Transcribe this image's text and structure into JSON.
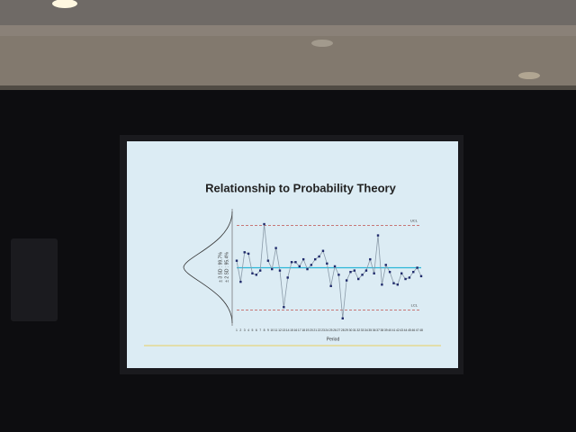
{
  "chart_data": {
    "type": "line",
    "title": "Relationship to Probability Theory",
    "x_label": "Period",
    "categories": [
      1,
      2,
      3,
      4,
      5,
      6,
      7,
      8,
      9,
      10,
      11,
      12,
      13,
      14,
      15,
      16,
      17,
      18,
      19,
      20,
      21,
      22,
      23,
      24,
      25,
      26,
      27,
      28,
      29,
      30,
      31,
      32,
      33,
      34,
      35,
      36,
      37,
      38,
      39,
      40,
      41,
      42,
      43,
      44,
      45,
      46,
      47,
      48
    ],
    "values": [
      0.5,
      -1,
      1.1,
      1.0,
      -0.4,
      -0.5,
      -0.2,
      3.1,
      0.5,
      -0.1,
      1.4,
      -0.2,
      -2.8,
      -0.7,
      0.4,
      0.4,
      0.1,
      0.6,
      -0.1,
      0.2,
      0.6,
      0.8,
      1.2,
      0.3,
      -1.3,
      0.1,
      -0.5,
      -3.6,
      -0.9,
      -0.3,
      -0.2,
      -0.8,
      -0.5,
      -0.2,
      0.6,
      -0.4,
      2.3,
      -1.2,
      0.2,
      -0.3,
      -1.1,
      -1.2,
      -0.4,
      -0.8,
      -0.7,
      -0.3,
      0.0,
      -0.6
    ],
    "color": "#1f2a6b",
    "center": 0,
    "center_color": "#29b6d8",
    "ucl": 3,
    "lcl": -3,
    "limit_color": "#c0504d",
    "ucl_label": "UCL",
    "lcl_label": "LCL",
    "annotations": [
      "± 3 SD : 99.7%",
      "± 2 SD : 95.4%"
    ],
    "ylim": [
      -4,
      4
    ]
  }
}
